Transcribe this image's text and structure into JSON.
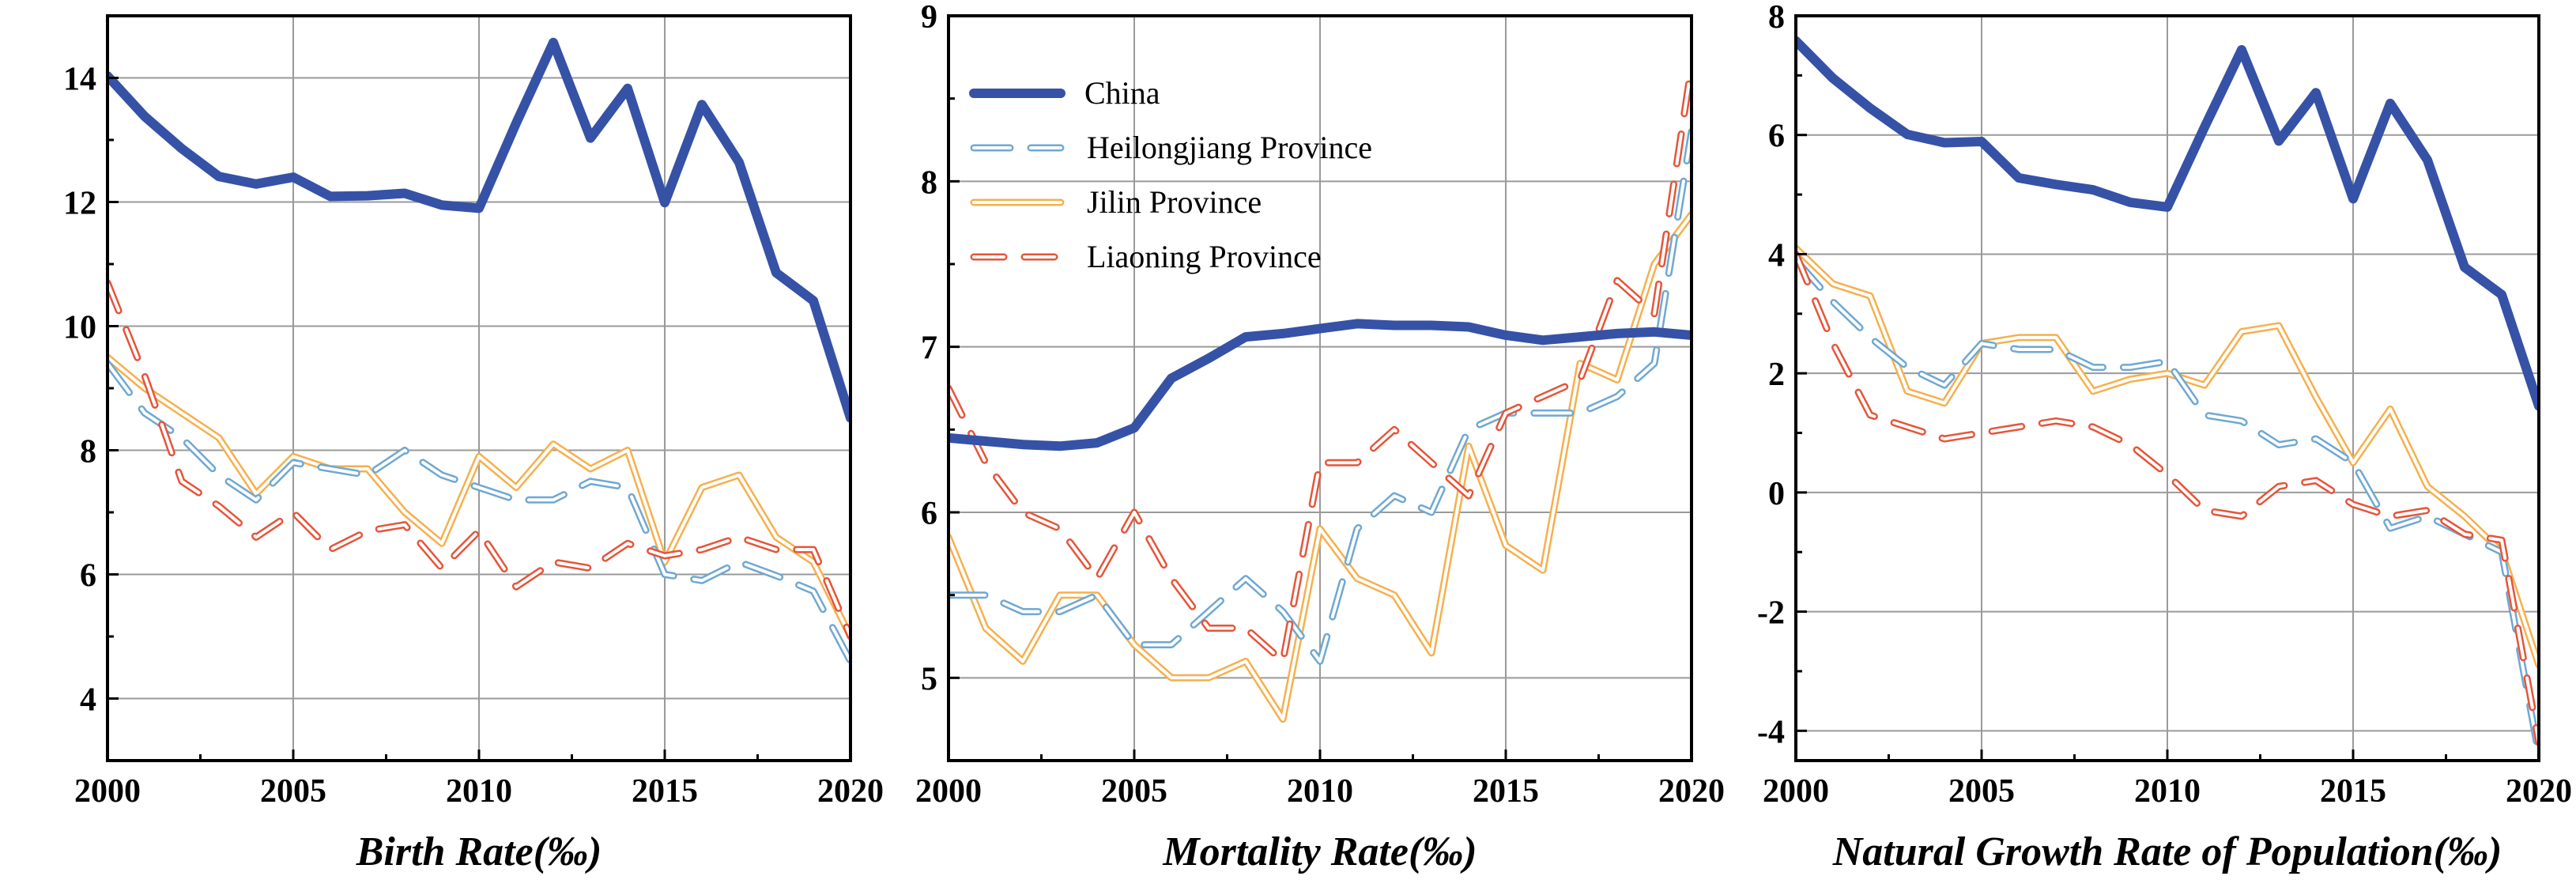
{
  "legend": [
    {
      "key": "china",
      "label": "China",
      "color": "#3652A6"
    },
    {
      "key": "heilongjiang",
      "label": "Heilongjiang Province",
      "color": "#6FA8D2"
    },
    {
      "key": "jilin",
      "label": "Jilin Province",
      "color": "#F5B04E"
    },
    {
      "key": "liaoning",
      "label": "Liaoning Province",
      "color": "#E5553A"
    }
  ],
  "chart_data": [
    {
      "type": "line",
      "title": "",
      "xlabel": "Birth Rate(‰)",
      "ylabel": "",
      "xlim": [
        2000,
        2020
      ],
      "ylim": [
        3,
        15
      ],
      "xticks": [
        2000,
        2005,
        2010,
        2015,
        2020
      ],
      "yticks": [
        4,
        6,
        8,
        10,
        12,
        14
      ],
      "grid": true,
      "x": [
        2000,
        2001,
        2002,
        2003,
        2004,
        2005,
        2006,
        2007,
        2008,
        2009,
        2010,
        2011,
        2012,
        2013,
        2014,
        2015,
        2016,
        2017,
        2018,
        2019,
        2020
      ],
      "series": [
        {
          "key": "china",
          "name": "China",
          "values": [
            14.03,
            13.38,
            12.86,
            12.41,
            12.29,
            12.4,
            12.09,
            12.1,
            12.14,
            11.95,
            11.9,
            13.27,
            14.57,
            13.03,
            13.83,
            11.99,
            13.57,
            12.64,
            10.86,
            10.41,
            8.52
          ]
        },
        {
          "key": "heilongjiang",
          "name": "Heilongjiang Province",
          "values": [
            9.4,
            8.6,
            8.2,
            7.6,
            7.2,
            7.8,
            7.7,
            7.6,
            8.0,
            7.6,
            7.4,
            7.2,
            7.2,
            7.5,
            7.4,
            6.0,
            5.9,
            6.2,
            5.98,
            5.73,
            4.6
          ]
        },
        {
          "key": "jilin",
          "name": "Jilin Province",
          "values": [
            9.5,
            9.0,
            8.6,
            8.2,
            7.3,
            7.9,
            7.7,
            7.7,
            7.0,
            6.5,
            7.9,
            7.4,
            8.1,
            7.7,
            8.0,
            6.2,
            7.4,
            7.6,
            6.6,
            6.2,
            5.0
          ]
        },
        {
          "key": "liaoning",
          "name": "Liaoning Province",
          "values": [
            10.7,
            9.2,
            7.5,
            7.1,
            6.6,
            7.0,
            6.4,
            6.7,
            6.8,
            6.1,
            6.7,
            5.8,
            6.2,
            6.1,
            6.5,
            6.3,
            6.4,
            6.6,
            6.4,
            6.4,
            5.0
          ]
        }
      ]
    },
    {
      "type": "line",
      "title": "",
      "xlabel": "Mortality Rate(‰)",
      "ylabel": "",
      "xlim": [
        2000,
        2020
      ],
      "ylim": [
        4.5,
        9
      ],
      "xticks": [
        2000,
        2005,
        2010,
        2015,
        2020
      ],
      "yticks": [
        5,
        6,
        7,
        8,
        9
      ],
      "grid": true,
      "x": [
        2000,
        2001,
        2002,
        2003,
        2004,
        2005,
        2006,
        2007,
        2008,
        2009,
        2010,
        2011,
        2012,
        2013,
        2014,
        2015,
        2016,
        2017,
        2018,
        2019,
        2020
      ],
      "series": [
        {
          "key": "china",
          "name": "China",
          "values": [
            6.45,
            6.43,
            6.41,
            6.4,
            6.42,
            6.51,
            6.81,
            6.93,
            7.06,
            7.08,
            7.11,
            7.14,
            7.13,
            7.13,
            7.12,
            7.07,
            7.04,
            7.06,
            7.08,
            7.09,
            7.07
          ]
        },
        {
          "key": "heilongjiang",
          "name": "Heilongjiang Province",
          "values": [
            5.5,
            5.5,
            5.4,
            5.4,
            5.5,
            5.2,
            5.2,
            5.4,
            5.6,
            5.4,
            5.1,
            5.9,
            6.1,
            6.0,
            6.5,
            6.6,
            6.6,
            6.6,
            6.7,
            6.9,
            8.3
          ]
        },
        {
          "key": "jilin",
          "name": "Jilin Province",
          "values": [
            5.85,
            5.3,
            5.1,
            5.5,
            5.5,
            5.2,
            5.0,
            5.0,
            5.1,
            4.75,
            5.9,
            5.6,
            5.5,
            5.15,
            6.4,
            5.8,
            5.65,
            6.9,
            6.8,
            7.5,
            7.8
          ]
        },
        {
          "key": "liaoning",
          "name": "Liaoning Province",
          "values": [
            6.75,
            6.3,
            6.0,
            5.9,
            5.6,
            6.0,
            5.6,
            5.3,
            5.3,
            5.1,
            6.3,
            6.3,
            6.5,
            6.3,
            6.1,
            6.6,
            6.7,
            6.8,
            7.4,
            7.2,
            8.7
          ]
        }
      ]
    },
    {
      "type": "line",
      "title": "",
      "xlabel": "Natural Growth Rate of Population(‰)",
      "ylabel": "",
      "xlim": [
        2000,
        2020
      ],
      "ylim": [
        -4.5,
        8
      ],
      "xticks": [
        2000,
        2005,
        2010,
        2015,
        2020
      ],
      "yticks": [
        -4,
        -2,
        0,
        2,
        4,
        6,
        8
      ],
      "grid": true,
      "x": [
        2000,
        2001,
        2002,
        2003,
        2004,
        2005,
        2006,
        2007,
        2008,
        2009,
        2010,
        2011,
        2012,
        2013,
        2014,
        2015,
        2016,
        2017,
        2018,
        2019,
        2020
      ],
      "series": [
        {
          "key": "china",
          "name": "China",
          "values": [
            7.58,
            6.95,
            6.45,
            6.01,
            5.87,
            5.89,
            5.28,
            5.17,
            5.08,
            4.87,
            4.79,
            6.13,
            7.43,
            5.9,
            6.71,
            4.93,
            6.53,
            5.58,
            3.78,
            3.32,
            1.45
          ]
        },
        {
          "key": "heilongjiang",
          "name": "Heilongjiang Province",
          "values": [
            3.9,
            3.2,
            2.6,
            2.1,
            1.8,
            2.5,
            2.4,
            2.4,
            2.1,
            2.1,
            2.2,
            1.3,
            1.2,
            0.8,
            0.9,
            0.5,
            -0.6,
            -0.4,
            -0.7,
            -1.0,
            -4.4
          ]
        },
        {
          "key": "jilin",
          "name": "Jilin Province",
          "values": [
            4.1,
            3.5,
            3.3,
            1.7,
            1.5,
            2.5,
            2.6,
            2.6,
            1.7,
            1.9,
            2.0,
            1.8,
            2.7,
            2.8,
            1.6,
            0.5,
            1.4,
            0.1,
            -0.4,
            -1.0,
            -2.9
          ]
        },
        {
          "key": "liaoning",
          "name": "Liaoning Province",
          "values": [
            4.0,
            2.5,
            1.3,
            1.1,
            0.9,
            1.0,
            1.1,
            1.2,
            1.1,
            0.8,
            0.3,
            -0.3,
            -0.4,
            0.1,
            0.2,
            -0.2,
            -0.4,
            -0.3,
            -0.7,
            -0.8,
            -4.2
          ]
        }
      ]
    }
  ]
}
